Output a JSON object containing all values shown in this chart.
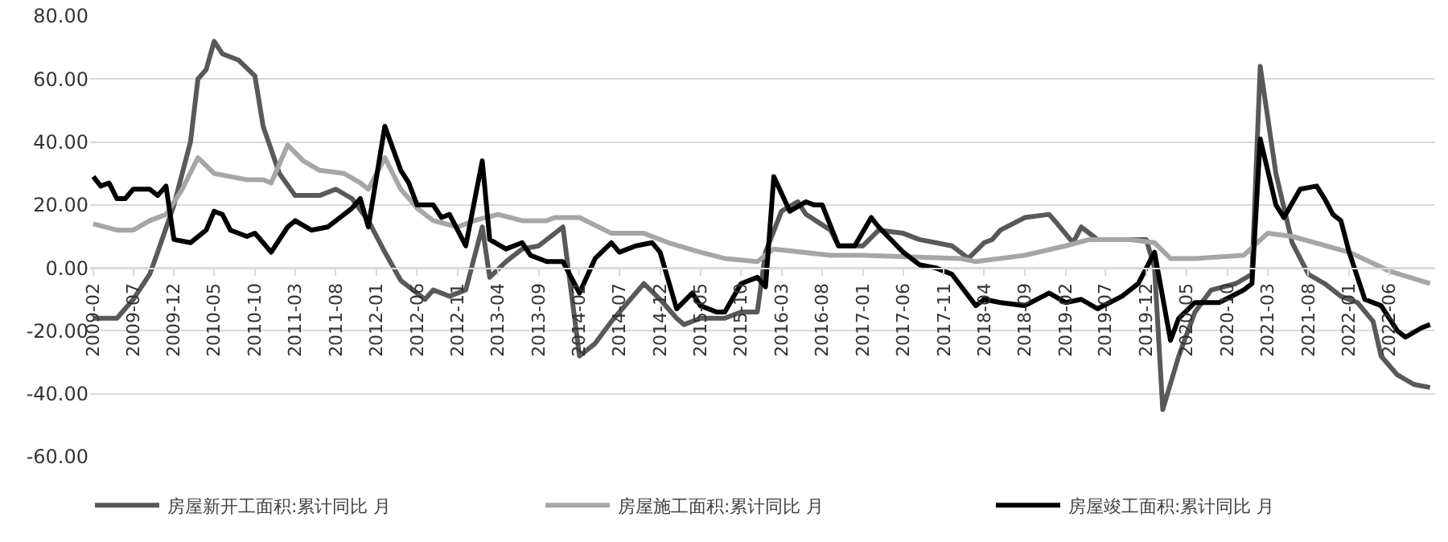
{
  "chart_data": {
    "type": "line",
    "xlim": [
      "2009-01-20",
      "2022-11-20"
    ],
    "xticks": [
      {
        "value": "2009-02",
        "label": "2009-02"
      },
      {
        "value": "2009-07",
        "label": "2009-07"
      },
      {
        "value": "2009-12",
        "label": "2009-12"
      },
      {
        "value": "2010-05",
        "label": "2010-05"
      },
      {
        "value": "2010-10",
        "label": "2010-10"
      },
      {
        "value": "2011-03",
        "label": "2011-03"
      },
      {
        "value": "2011-08",
        "label": "2011-08"
      },
      {
        "value": "2012-01",
        "label": "2012-01"
      },
      {
        "value": "2012-06",
        "label": "2012-06"
      },
      {
        "value": "2012-11",
        "label": "2012-11"
      },
      {
        "value": "2013-04",
        "label": "2013-04"
      },
      {
        "value": "2013-09",
        "label": "2013-09"
      },
      {
        "value": "2014-02",
        "label": "2014-02"
      },
      {
        "value": "2014-07",
        "label": "2014-07"
      },
      {
        "value": "2014-12",
        "label": "2014-12"
      },
      {
        "value": "2015-05",
        "label": "2015-05"
      },
      {
        "value": "2015-10",
        "label": "2015-10"
      },
      {
        "value": "2016-03",
        "label": "2016-03"
      },
      {
        "value": "2016-08",
        "label": "2016-08"
      },
      {
        "value": "2017-01",
        "label": "2017-01"
      },
      {
        "value": "2017-06",
        "label": "2017-06"
      },
      {
        "value": "2017-11",
        "label": "2017-11"
      },
      {
        "value": "2018-04",
        "label": "2018-04"
      },
      {
        "value": "2018-09",
        "label": "2018-09"
      },
      {
        "value": "2019-02",
        "label": "2019-02"
      },
      {
        "value": "2019-07",
        "label": "2019-07"
      },
      {
        "value": "2019-12",
        "label": "2019-12"
      },
      {
        "value": "2020-05",
        "label": "2020-05"
      },
      {
        "value": "2020-10",
        "label": "2020-10"
      },
      {
        "value": "2021-03",
        "label": "2021-03"
      },
      {
        "value": "2021-08",
        "label": "2021-08"
      },
      {
        "value": "2022-01",
        "label": "2022-01"
      },
      {
        "value": "2022-06",
        "label": "2022-06"
      }
    ],
    "ylim": [
      -60,
      80
    ],
    "yticks": [
      {
        "value": -60,
        "label": "-60.00"
      },
      {
        "value": -40,
        "label": "-40.00"
      },
      {
        "value": -20,
        "label": "-20.00"
      },
      {
        "value": 0,
        "label": "0.00"
      },
      {
        "value": 20,
        "label": "20.00"
      },
      {
        "value": 40,
        "label": "40.00"
      },
      {
        "value": 60,
        "label": "60.00"
      },
      {
        "value": 80,
        "label": "80.00"
      }
    ],
    "grid": "y",
    "legend": "bottom",
    "marker": "none",
    "line_style": "solid",
    "series": [
      {
        "name": "房屋新开工面积:累计同比 月",
        "color": "#595959",
        "x": [
          "2009-02",
          "2009-05",
          "2009-07",
          "2009-09",
          "2009-10",
          "2009-12",
          "2010-02",
          "2010-03",
          "2010-04",
          "2010-05",
          "2010-06",
          "2010-08",
          "2010-10",
          "2010-11",
          "2011-01",
          "2011-03",
          "2011-06",
          "2011-08",
          "2011-10",
          "2011-12",
          "2012-02",
          "2012-04",
          "2012-07",
          "2012-08",
          "2012-10",
          "2012-12",
          "2013-02",
          "2013-03",
          "2013-05",
          "2013-07",
          "2013-09",
          "2013-11",
          "2013-12",
          "2014-02",
          "2014-04",
          "2014-06",
          "2014-08",
          "2014-10",
          "2014-12",
          "2015-02",
          "2015-03",
          "2015-05",
          "2015-08",
          "2015-10",
          "2015-12",
          "2016-01",
          "2016-03",
          "2016-05",
          "2016-06",
          "2016-09",
          "2016-10",
          "2017-01",
          "2017-03",
          "2017-06",
          "2017-08",
          "2017-10",
          "2017-12",
          "2018-02",
          "2018-04",
          "2018-05",
          "2018-06",
          "2018-09",
          "2018-12",
          "2019-01",
          "2019-03",
          "2019-04",
          "2019-06",
          "2019-09",
          "2019-12",
          "2020-01",
          "2020-02",
          "2020-04",
          "2020-06",
          "2020-08",
          "2020-11",
          "2021-01",
          "2021-02",
          "2021-04",
          "2021-06",
          "2021-08",
          "2021-10",
          "2021-12",
          "2022-02",
          "2022-04",
          "2022-05",
          "2022-07",
          "2022-09",
          "2022-11"
        ],
        "values": [
          -16,
          -16,
          -10,
          -2,
          5,
          20,
          40,
          60,
          63,
          72,
          68,
          66,
          61,
          45,
          30,
          23,
          23,
          25,
          22,
          15,
          5,
          -4,
          -10,
          -7,
          -9,
          -7,
          13,
          -3,
          2,
          6,
          7,
          11,
          13,
          -28,
          -24,
          -17,
          -11,
          -5,
          -10,
          -16,
          -18,
          -16,
          -16,
          -14,
          -14,
          5,
          18,
          21,
          17,
          12,
          7,
          7,
          12,
          11,
          9,
          8,
          7,
          3,
          8,
          9,
          12,
          16,
          17,
          14,
          8,
          13,
          9,
          9,
          9,
          0,
          -45,
          -28,
          -14,
          -7,
          -5,
          -2,
          64,
          30,
          8,
          -2,
          -5,
          -9,
          -11,
          -17,
          -28,
          -34,
          -37,
          -38
        ]
      },
      {
        "name": "房屋施工面积:累计同比 月",
        "color": "#a6a6a6",
        "x": [
          "2009-02",
          "2009-05",
          "2009-07",
          "2009-09",
          "2009-11",
          "2010-01",
          "2010-03",
          "2010-05",
          "2010-07",
          "2010-09",
          "2010-11",
          "2010-12",
          "2011-02",
          "2011-04",
          "2011-06",
          "2011-09",
          "2011-11",
          "2011-12",
          "2012-02",
          "2012-04",
          "2012-06",
          "2012-08",
          "2012-11",
          "2013-01",
          "2013-04",
          "2013-07",
          "2013-10",
          "2013-11",
          "2014-02",
          "2014-06",
          "2014-10",
          "2015-01",
          "2015-05",
          "2015-08",
          "2015-12",
          "2016-02",
          "2016-09",
          "2017-01",
          "2018-01",
          "2018-03",
          "2018-09",
          "2019-02",
          "2019-05",
          "2019-10",
          "2020-01",
          "2020-03",
          "2020-06",
          "2020-12",
          "2021-03",
          "2021-06",
          "2022-01",
          "2022-06",
          "2022-11"
        ],
        "values": [
          14,
          12,
          12,
          15,
          17,
          25,
          35,
          30,
          29,
          28,
          28,
          27,
          39,
          34,
          31,
          30,
          27,
          25,
          35,
          25,
          19,
          15,
          13,
          15,
          17,
          15,
          15,
          16,
          16,
          11,
          11,
          8,
          5,
          3,
          2,
          6,
          4,
          4,
          3,
          2,
          4,
          7,
          9,
          9,
          8,
          3,
          3,
          4,
          11,
          10,
          5,
          -1,
          -5
        ]
      },
      {
        "name": "房屋竣工面积:累计同比 月",
        "color": "#000000",
        "x": [
          "2009-02",
          "2009-03",
          "2009-04",
          "2009-05",
          "2009-06",
          "2009-07",
          "2009-09",
          "2009-10",
          "2009-11",
          "2009-12",
          "2010-02",
          "2010-04",
          "2010-05",
          "2010-06",
          "2010-07",
          "2010-09",
          "2010-10",
          "2010-11",
          "2010-12",
          "2011-02",
          "2011-03",
          "2011-05",
          "2011-07",
          "2011-09",
          "2011-10",
          "2011-11",
          "2011-12",
          "2012-02",
          "2012-04",
          "2012-05",
          "2012-06",
          "2012-08",
          "2012-09",
          "2012-10",
          "2012-12",
          "2013-02",
          "2013-03",
          "2013-05",
          "2013-07",
          "2013-08",
          "2013-10",
          "2013-12",
          "2014-02",
          "2014-04",
          "2014-06",
          "2014-07",
          "2014-09",
          "2014-11",
          "2014-12",
          "2015-02",
          "2015-04",
          "2015-05",
          "2015-07",
          "2015-08",
          "2015-10",
          "2015-12",
          "2016-01",
          "2016-02",
          "2016-04",
          "2016-06",
          "2016-07",
          "2016-08",
          "2016-10",
          "2016-12",
          "2017-02",
          "2017-03",
          "2017-06",
          "2017-08",
          "2017-10",
          "2017-12",
          "2018-03",
          "2018-04",
          "2018-06",
          "2018-09",
          "2018-12",
          "2019-02",
          "2019-04",
          "2019-06",
          "2019-09",
          "2019-11",
          "2020-01",
          "2020-03",
          "2020-04",
          "2020-06",
          "2020-09",
          "2020-12",
          "2021-01",
          "2021-02",
          "2021-04",
          "2021-05",
          "2021-07",
          "2021-09",
          "2021-10",
          "2021-11",
          "2021-12",
          "2022-01",
          "2022-03",
          "2022-05",
          "2022-07",
          "2022-08",
          "2022-10",
          "2022-11"
        ],
        "values": [
          29,
          26,
          27,
          22,
          22,
          25,
          25,
          23,
          26,
          9,
          8,
          12,
          18,
          17,
          12,
          10,
          11,
          8,
          5,
          13,
          15,
          12,
          13,
          17,
          19,
          22,
          13,
          45,
          31,
          27,
          20,
          20,
          16,
          17,
          7,
          34,
          9,
          6,
          8,
          4,
          2,
          2,
          -8,
          3,
          8,
          5,
          7,
          8,
          5,
          -13,
          -8,
          -12,
          -14,
          -14,
          -5,
          -3,
          -6,
          29,
          18,
          21,
          20,
          20,
          7,
          7,
          16,
          13,
          5,
          1,
          0,
          -2,
          -12,
          -10,
          -11,
          -12,
          -8,
          -11,
          -10,
          -13,
          -9,
          -5,
          5,
          -23,
          -16,
          -11,
          -11,
          -7,
          -5,
          41,
          20,
          16,
          25,
          26,
          22,
          17,
          15,
          5,
          -10,
          -12,
          -20,
          -22,
          -19,
          -18
        ]
      }
    ]
  }
}
